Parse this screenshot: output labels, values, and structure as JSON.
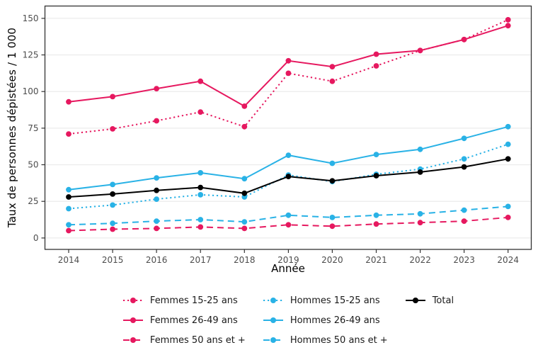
{
  "axes": {
    "x_label": "Année",
    "y_label": "Taux de personnes dépistées / 1 000",
    "y_ticks": [
      0,
      25,
      50,
      75,
      100,
      125,
      150
    ]
  },
  "colors": {
    "femmes": "#e6185f",
    "hommes": "#29b2e6",
    "total": "#000000",
    "gridline": "#ececec",
    "panel_border": "#333333",
    "tick_text": "#4d4d4d"
  },
  "chart_data": {
    "type": "line",
    "title": "",
    "xlabel": "Année",
    "ylabel": "Taux de personnes dépistées / 1 000",
    "x": [
      2014,
      2015,
      2016,
      2017,
      2018,
      2019,
      2020,
      2021,
      2022,
      2023,
      2024
    ],
    "ylim": [
      0,
      150
    ],
    "y_ticks": [
      0,
      25,
      50,
      75,
      100,
      125,
      150
    ],
    "grid": "horizontal",
    "legend_position": "bottom",
    "series": [
      {
        "name": "Femmes 15-25 ans",
        "color": "#e6185f",
        "style": "dotted",
        "values": [
          71,
          74.5,
          80,
          86,
          76,
          112.5,
          107,
          117.5,
          128,
          135.5,
          149
        ]
      },
      {
        "name": "Femmes 26-49 ans",
        "color": "#e6185f",
        "style": "solid",
        "values": [
          93,
          96.5,
          102,
          107,
          90,
          121,
          117,
          125.5,
          128,
          135.5,
          145
        ]
      },
      {
        "name": "Femmes 50 ans et +",
        "color": "#e6185f",
        "style": "dashed",
        "values": [
          5,
          6,
          6.5,
          7.5,
          6.5,
          9,
          8,
          9.5,
          10.5,
          11.5,
          14
        ]
      },
      {
        "name": "Hommes 15-25 ans",
        "color": "#29b2e6",
        "style": "dotted",
        "values": [
          20,
          22.5,
          26.5,
          29.5,
          28,
          43,
          38.5,
          43.5,
          47,
          54,
          64
        ]
      },
      {
        "name": "Hommes 26-49 ans",
        "color": "#29b2e6",
        "style": "solid",
        "values": [
          33,
          36.5,
          41,
          44.5,
          40.5,
          56.5,
          51,
          57,
          60.5,
          68,
          76
        ]
      },
      {
        "name": "Hommes 50 ans et +",
        "color": "#29b2e6",
        "style": "dashed",
        "values": [
          9,
          10,
          11.5,
          12.5,
          11,
          15.5,
          14,
          15.5,
          16.5,
          19,
          21.5
        ]
      },
      {
        "name": "Total",
        "color": "#000000",
        "style": "solid",
        "values": [
          28,
          30,
          32.5,
          34.5,
          30.5,
          42,
          39,
          42.5,
          45,
          48.5,
          54
        ]
      }
    ],
    "legend_columns": [
      [
        "Femmes 15-25 ans",
        "Femmes 26-49 ans",
        "Femmes 50 ans et +"
      ],
      [
        "Hommes 15-25 ans",
        "Hommes 26-49 ans",
        "Hommes 50 ans et +"
      ],
      [
        "Total"
      ]
    ]
  }
}
